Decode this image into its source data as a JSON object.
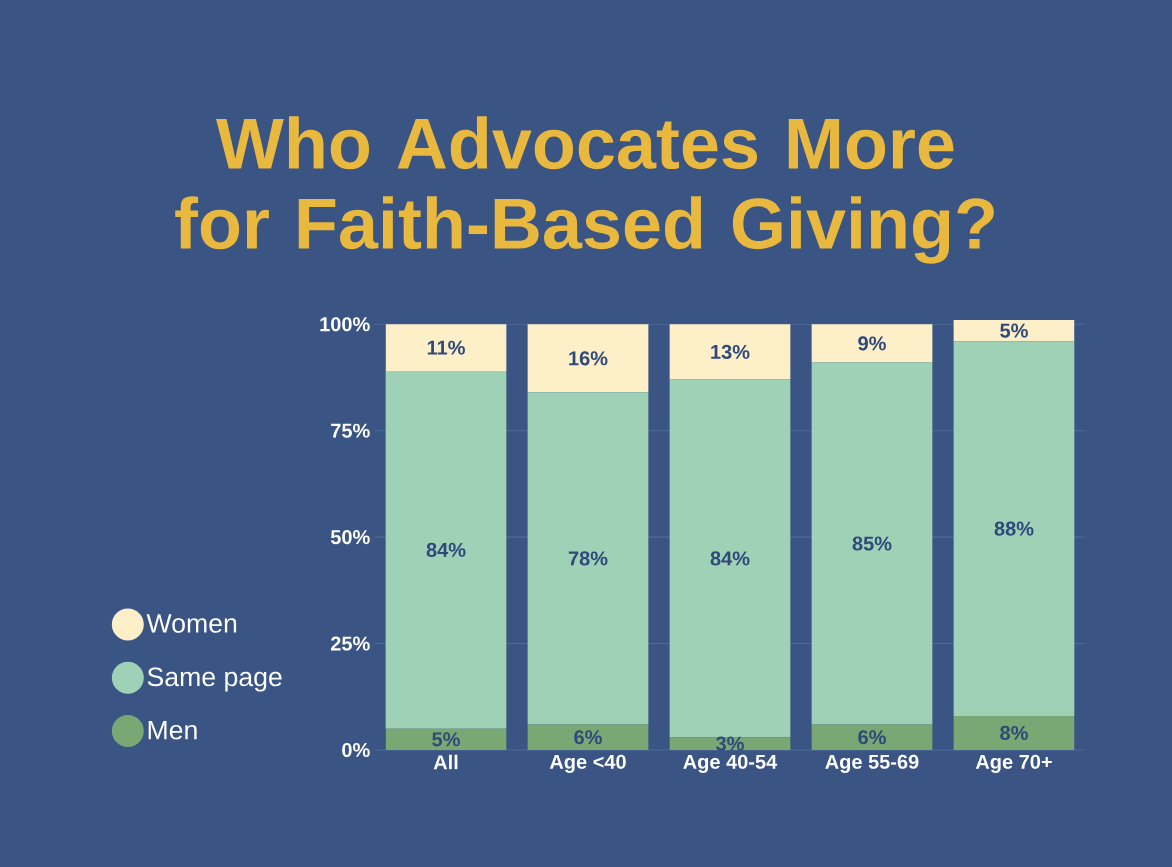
{
  "chart_data": {
    "type": "bar",
    "stacked": true,
    "title": "Who Advocates More for Faith-Based Giving?",
    "categories": [
      "All",
      "Age <40",
      "Age 40-54",
      "Age 55-69",
      "Age 70+"
    ],
    "series": [
      {
        "name": "Men",
        "color": "#7aa874",
        "values": [
          5,
          6,
          3,
          6,
          8
        ],
        "value_labels": [
          "5%",
          "6%",
          "3%",
          "6%",
          "8%"
        ]
      },
      {
        "name": "Same page",
        "color": "#9fd1b6",
        "values": [
          84,
          78,
          84,
          85,
          88
        ],
        "value_labels": [
          "84%",
          "78%",
          "84%",
          "85%",
          "88%"
        ]
      },
      {
        "name": "Women",
        "color": "#fdf0c8",
        "values": [
          11,
          16,
          13,
          9,
          5
        ],
        "value_labels": [
          "11%",
          "16%",
          "13%",
          "9%",
          "5%"
        ]
      }
    ],
    "ylim": [
      0,
      101
    ],
    "yticks": [
      {
        "value": 0,
        "label": "0%"
      },
      {
        "value": 25,
        "label": "25%"
      },
      {
        "value": 50,
        "label": "50%"
      },
      {
        "value": 75,
        "label": "75%"
      },
      {
        "value": 100,
        "label": "100%"
      }
    ],
    "grid": "y",
    "legend": "left"
  }
}
